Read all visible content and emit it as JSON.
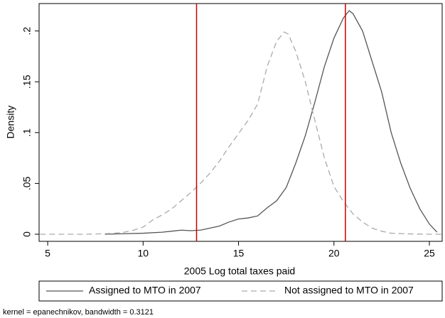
{
  "chart_data": {
    "type": "line",
    "xlabel": "2005 Log total taxes paid",
    "ylabel": "Density",
    "note": "kernel = epanechnikov, bandwidth = 0.3121",
    "xlim": [
      4.55,
      25.67
    ],
    "xticks": [
      5,
      10,
      15,
      20,
      25
    ],
    "ylim": [
      -0.007,
      0.227
    ],
    "yticks": [
      0,
      {
        "value": 0.05,
        "label": ".05"
      },
      {
        "value": 0.1,
        "label": ".1"
      },
      {
        "value": 0.15,
        "label": ".15"
      },
      {
        "value": 0.2,
        "label": ".2"
      }
    ],
    "reference_lines": [
      12.8,
      20.6
    ],
    "reference_line_color": "#cc0000",
    "series": [
      {
        "name": "Assigned to MTO in 2007",
        "color": "#555555",
        "style": "solid",
        "x": [
          8,
          9,
          10,
          11,
          11.5,
          12,
          12.5,
          13,
          13.5,
          14,
          14.5,
          15,
          15.5,
          16,
          16.5,
          17,
          17.5,
          18,
          18.5,
          19,
          19.5,
          20,
          20.5,
          20.8,
          21,
          21.5,
          22,
          22.5,
          23,
          23.5,
          24,
          24.5,
          25,
          25.4
        ],
        "values": [
          0,
          0.0005,
          0.001,
          0.002,
          0.003,
          0.004,
          0.0035,
          0.004,
          0.006,
          0.008,
          0.012,
          0.015,
          0.016,
          0.018,
          0.026,
          0.033,
          0.046,
          0.07,
          0.097,
          0.13,
          0.165,
          0.193,
          0.213,
          0.22,
          0.217,
          0.2,
          0.17,
          0.14,
          0.1,
          0.07,
          0.045,
          0.025,
          0.01,
          0.002
        ]
      },
      {
        "name": "Not assigned to MTO in 2007",
        "color": "#aaaaaa",
        "style": "dashed",
        "x": [
          4.6,
          6,
          7,
          8,
          8.5,
          9,
          9.5,
          10,
          10.5,
          11,
          11.5,
          12,
          12.5,
          13,
          13.5,
          14,
          14.5,
          15,
          15.5,
          16,
          16.5,
          17,
          17.4,
          17.6,
          18,
          18.5,
          19,
          19.5,
          20,
          20.5,
          21,
          21.5,
          22,
          22.5,
          23,
          24,
          25,
          25.7
        ],
        "values": [
          0,
          0,
          0,
          0.0005,
          0.001,
          0.002,
          0.004,
          0.007,
          0.014,
          0.019,
          0.025,
          0.033,
          0.041,
          0.05,
          0.06,
          0.072,
          0.086,
          0.099,
          0.112,
          0.128,
          0.165,
          0.19,
          0.199,
          0.197,
          0.18,
          0.15,
          0.112,
          0.075,
          0.047,
          0.032,
          0.02,
          0.012,
          0.006,
          0.003,
          0.001,
          0.0003,
          0,
          0
        ]
      }
    ]
  }
}
